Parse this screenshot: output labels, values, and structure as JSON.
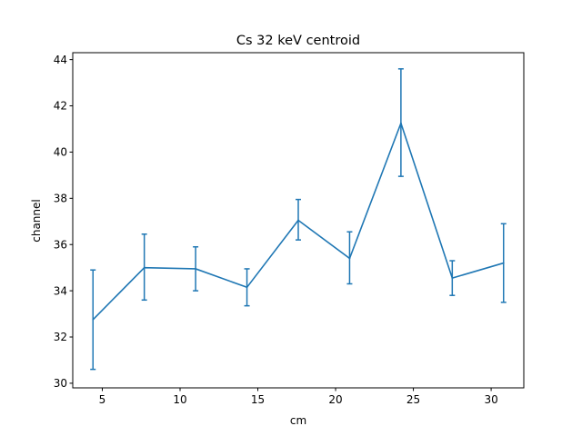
{
  "chart_data": {
    "type": "line",
    "title": "Cs 32 keV centroid",
    "xlabel": "cm",
    "ylabel": "channel",
    "xlim": [
      3.1,
      32.1
    ],
    "ylim": [
      29.8,
      44.3
    ],
    "x_ticks": [
      5,
      10,
      15,
      20,
      25,
      30
    ],
    "y_ticks": [
      30,
      32,
      34,
      36,
      38,
      40,
      42,
      44
    ],
    "grid": false,
    "series": [
      {
        "color": "#1f77b4",
        "points": [
          {
            "x": 4.4,
            "y": 32.75,
            "err_low": 30.6,
            "err_high": 34.9
          },
          {
            "x": 7.7,
            "y": 35.0,
            "err_low": 33.6,
            "err_high": 36.45
          },
          {
            "x": 11.0,
            "y": 34.95,
            "err_low": 34.0,
            "err_high": 35.9
          },
          {
            "x": 14.3,
            "y": 34.15,
            "err_low": 33.35,
            "err_high": 34.95
          },
          {
            "x": 17.6,
            "y": 37.05,
            "err_low": 36.2,
            "err_high": 37.95
          },
          {
            "x": 20.9,
            "y": 35.4,
            "err_low": 34.3,
            "err_high": 36.55
          },
          {
            "x": 24.2,
            "y": 41.25,
            "err_low": 38.95,
            "err_high": 43.6
          },
          {
            "x": 27.5,
            "y": 34.55,
            "err_low": 33.8,
            "err_high": 35.3
          },
          {
            "x": 30.8,
            "y": 35.2,
            "err_low": 33.5,
            "err_high": 36.9
          }
        ]
      }
    ]
  }
}
